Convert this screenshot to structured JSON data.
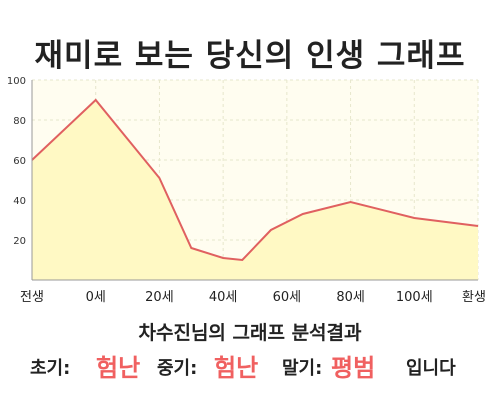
{
  "title": "재미로 보는 당신의 인생 그래프",
  "chart_data": {
    "type": "area",
    "x": [
      "전생",
      "0세",
      "20세",
      "40세",
      "60세",
      "80세",
      "100세",
      "환생"
    ],
    "x_values": [
      -20,
      0,
      20,
      40,
      60,
      80,
      100,
      120
    ],
    "points": [
      {
        "x": -20,
        "y": 60
      },
      {
        "x": 0,
        "y": 90
      },
      {
        "x": 20,
        "y": 51
      },
      {
        "x": 30,
        "y": 16
      },
      {
        "x": 40,
        "y": 11
      },
      {
        "x": 46,
        "y": 10
      },
      {
        "x": 55,
        "y": 25
      },
      {
        "x": 65,
        "y": 33
      },
      {
        "x": 80,
        "y": 39
      },
      {
        "x": 100,
        "y": 31
      },
      {
        "x": 120,
        "y": 27
      }
    ],
    "yticks": [
      20,
      40,
      60,
      80,
      100
    ],
    "ylim": [
      0,
      100
    ],
    "xlim": [
      -20,
      120
    ],
    "grid": true,
    "colors": {
      "fill": "#fff9c4",
      "line": "#e06060",
      "plot_bg": "#fffdf0",
      "grid": "#e6e6cc"
    }
  },
  "result": {
    "subject": "차수진님의 그래프 분석결과",
    "early_label": "초기:",
    "early_value": "험난",
    "mid_label": "중기:",
    "mid_value": "험난",
    "late_label": "말기:",
    "late_value": "평범",
    "ending": "입니다"
  }
}
